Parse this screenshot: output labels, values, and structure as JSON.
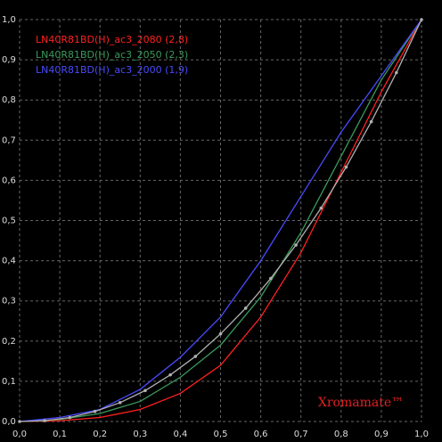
{
  "chart_data": {
    "type": "line",
    "watermark": "Xromamate™",
    "xlim": [
      0,
      1
    ],
    "ylim": [
      0,
      1
    ],
    "xticks": [
      {
        "value": 0,
        "label": "0,0"
      },
      {
        "value": 0.1,
        "label": "0,1"
      },
      {
        "value": 0.2,
        "label": "0,2"
      },
      {
        "value": 0.3,
        "label": "0,3"
      },
      {
        "value": 0.4,
        "label": "0,4"
      },
      {
        "value": 0.5,
        "label": "0,5"
      },
      {
        "value": 0.6,
        "label": "0,6"
      },
      {
        "value": 0.7,
        "label": "0,7"
      },
      {
        "value": 0.8,
        "label": "0,8"
      },
      {
        "value": 0.9,
        "label": "0,9"
      },
      {
        "value": 1,
        "label": "1,0"
      }
    ],
    "yticks": [
      {
        "value": 0,
        "label": "0,0"
      },
      {
        "value": 0.1,
        "label": "0,1"
      },
      {
        "value": 0.2,
        "label": "0,2"
      },
      {
        "value": 0.3,
        "label": "0,3"
      },
      {
        "value": 0.4,
        "label": "0,4"
      },
      {
        "value": 0.5,
        "label": "0,5"
      },
      {
        "value": 0.6,
        "label": "0,6"
      },
      {
        "value": 0.7,
        "label": "0,7"
      },
      {
        "value": 0.8,
        "label": "0,8"
      },
      {
        "value": 0.9,
        "label": "0,9"
      },
      {
        "value": 1,
        "label": "1,0"
      }
    ],
    "grid": true,
    "series": [
      {
        "name": "LN40R81BD(H)_ac3_2080 (2,8)",
        "color": "#ff2020",
        "x": [
          0,
          0.1,
          0.2,
          0.3,
          0.4,
          0.5,
          0.6,
          0.7,
          0.8,
          0.9,
          1
        ],
        "values": [
          0,
          0.002,
          0.01,
          0.03,
          0.07,
          0.14,
          0.26,
          0.42,
          0.62,
          0.82,
          1
        ]
      },
      {
        "name": "LN40R81BD(H)_ac3_2050 (2,3)",
        "color": "#3a9a5a",
        "x": [
          0,
          0.1,
          0.2,
          0.3,
          0.4,
          0.5,
          0.6,
          0.7,
          0.8,
          0.9,
          1
        ],
        "values": [
          0,
          0.005,
          0.02,
          0.05,
          0.11,
          0.19,
          0.31,
          0.47,
          0.66,
          0.85,
          1
        ]
      },
      {
        "name": "LN40R81BD(H)_ac3_2000 (1,9)",
        "color": "#4a4aff",
        "x": [
          0,
          0.1,
          0.2,
          0.3,
          0.4,
          0.5,
          0.6,
          0.7,
          0.8,
          0.9,
          1
        ],
        "values": [
          0,
          0.01,
          0.03,
          0.08,
          0.16,
          0.26,
          0.4,
          0.56,
          0.72,
          0.86,
          1
        ]
      },
      {
        "color": "#b0b0b0",
        "markers": true,
        "x": [
          0,
          0.0625,
          0.125,
          0.1875,
          0.25,
          0.3125,
          0.375,
          0.4375,
          0.5,
          0.5625,
          0.625,
          0.6875,
          0.75,
          0.8125,
          0.875,
          0.9375,
          1
        ],
        "values": [
          0,
          0.002,
          0.01,
          0.025,
          0.047,
          0.077,
          0.116,
          0.162,
          0.218,
          0.282,
          0.356,
          0.439,
          0.531,
          0.633,
          0.746,
          0.868,
          1
        ]
      }
    ]
  }
}
